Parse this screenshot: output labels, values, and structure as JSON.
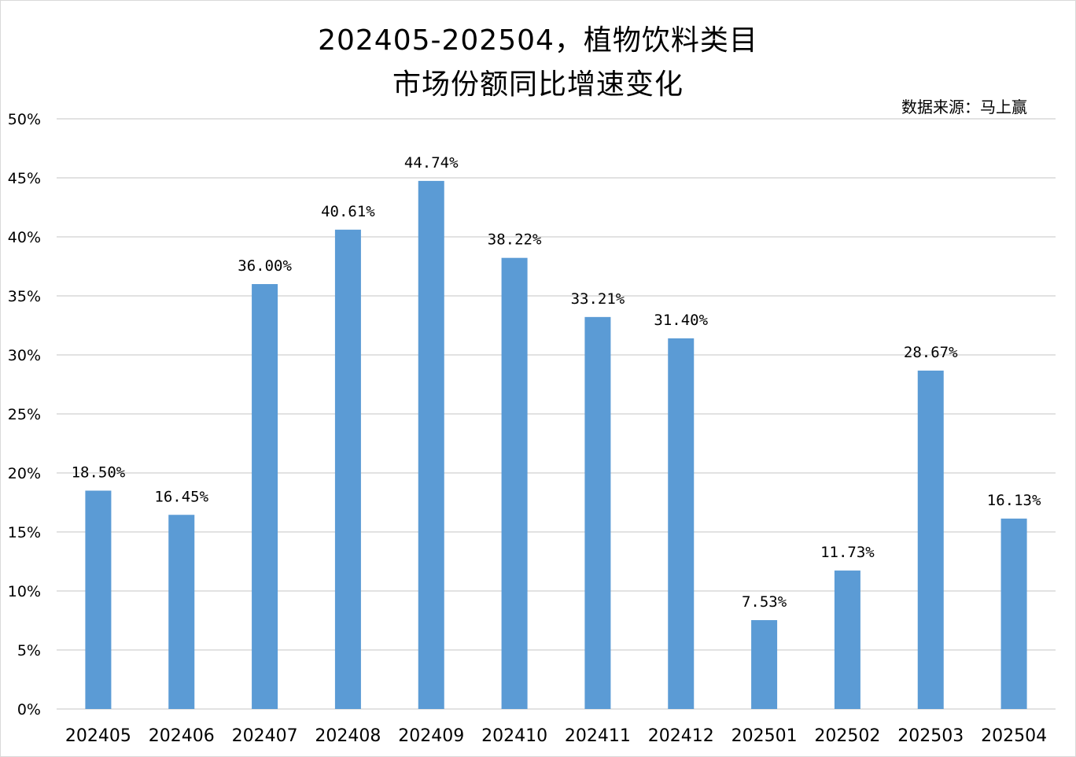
{
  "chart_data": {
    "type": "bar",
    "title_line1": "202405-202504，植物饮料类目",
    "title_line2": "市场份额同比增速变化",
    "source": "数据来源：马上赢",
    "categories": [
      "202405",
      "202406",
      "202407",
      "202408",
      "202409",
      "202410",
      "202411",
      "202412",
      "202501",
      "202502",
      "202503",
      "202504"
    ],
    "values": [
      18.5,
      16.45,
      36.0,
      40.61,
      44.74,
      38.22,
      33.21,
      31.4,
      7.53,
      11.73,
      28.67,
      16.13
    ],
    "value_labels": [
      "18.50%",
      "16.45%",
      "36.00%",
      "40.61%",
      "44.74%",
      "38.22%",
      "33.21%",
      "31.40%",
      "7.53%",
      "11.73%",
      "28.67%",
      "16.13%"
    ],
    "ylim": [
      0,
      50
    ],
    "yticks": [
      0,
      5,
      10,
      15,
      20,
      25,
      30,
      35,
      40,
      45,
      50
    ],
    "ytick_labels": [
      "0%",
      "5%",
      "10%",
      "15%",
      "20%",
      "25%",
      "30%",
      "35%",
      "40%",
      "45%",
      "50%"
    ],
    "xlabel": "",
    "ylabel": "",
    "grid": true,
    "legend": "none",
    "bar_color": "#5b9bd5",
    "grid_color": "#d9d9d9"
  }
}
